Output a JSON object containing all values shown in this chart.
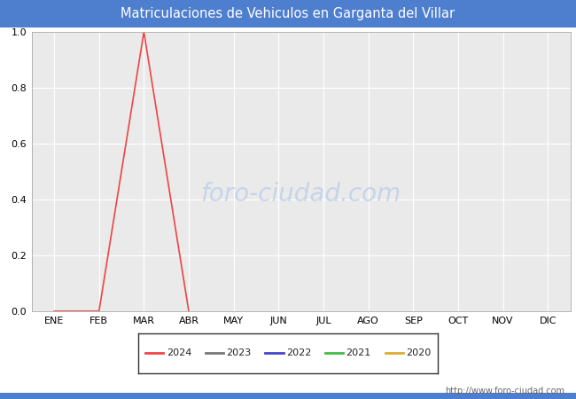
{
  "title": "Matriculaciones de Vehiculos en Garganta del Villar",
  "title_bg_color": "#4e7ece",
  "title_text_color": "#ffffff",
  "plot_bg_color": "#eaeaea",
  "fig_bg_color": "#ffffff",
  "months": [
    "ENE",
    "FEB",
    "MAR",
    "ABR",
    "MAY",
    "JUN",
    "JUL",
    "AGO",
    "SEP",
    "OCT",
    "NOV",
    "DIC"
  ],
  "ylim": [
    0.0,
    1.0
  ],
  "yticks": [
    0.0,
    0.2,
    0.4,
    0.6,
    0.8,
    1.0
  ],
  "series": {
    "2024": {
      "color": "#ee4444",
      "data": [
        0.0,
        0.0,
        1.0,
        0.0,
        null,
        null,
        null,
        null,
        null,
        null,
        null,
        null
      ]
    },
    "2023": {
      "color": "#777777",
      "data": [
        null,
        null,
        null,
        null,
        null,
        null,
        null,
        null,
        null,
        null,
        null,
        null
      ]
    },
    "2022": {
      "color": "#4444cc",
      "data": [
        null,
        null,
        null,
        null,
        null,
        null,
        null,
        null,
        null,
        null,
        null,
        null
      ]
    },
    "2021": {
      "color": "#44bb44",
      "data": [
        null,
        null,
        null,
        null,
        null,
        null,
        null,
        null,
        null,
        null,
        null,
        null
      ]
    },
    "2020": {
      "color": "#ddaa33",
      "data": [
        null,
        null,
        null,
        null,
        null,
        null,
        null,
        null,
        null,
        null,
        null,
        null
      ]
    }
  },
  "legend_order": [
    "2024",
    "2023",
    "2022",
    "2021",
    "2020"
  ],
  "watermark": "foro-ciudad.com",
  "url": "http://www.foro-ciudad.com",
  "grid_color": "#ffffff",
  "border_color": "#4e7ece"
}
